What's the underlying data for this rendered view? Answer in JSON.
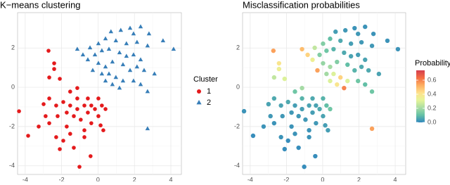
{
  "chart_data": [
    {
      "type": "scatter",
      "title": "K−means clustering",
      "legend_title": "Cluster",
      "legend": "right",
      "grid": true,
      "xlim": [
        -4.42,
        4.58
      ],
      "ylim": [
        -4.44,
        3.8
      ],
      "xticks": [
        -4,
        -2,
        0,
        2,
        4
      ],
      "yticks": [
        -4,
        -2,
        0,
        2
      ],
      "series": [
        {
          "name": "1",
          "color": "#e41a1c",
          "shape": "circle",
          "x": [
            -2.72,
            -2.41,
            -2.41,
            -2.68,
            -2.1,
            -4.34,
            -3.84,
            -3.26,
            -2.99,
            -2.68,
            -2.3,
            -1.91,
            -1.53,
            -1.14,
            -0.75,
            -1.72,
            -1.33,
            -0.95,
            -0.56,
            -0.17,
            0.21,
            0.41,
            0.02,
            -0.37,
            -0.75,
            -1.53,
            -1.91,
            -2.3,
            -1.33,
            -2.1,
            -1.02,
            -0.41,
            0.14,
            0.29,
            -0.75,
            -2.68,
            -2.88,
            -1.14,
            -0.56,
            -1.53,
            -2.22,
            -1.72,
            -1.14,
            -0.37,
            0.02
          ],
          "y": [
            1.86,
            1.22,
            0.93,
            0.5,
            0.43,
            -1.22,
            -2.47,
            -2.0,
            -0.86,
            -0.57,
            -0.93,
            -0.75,
            -0.22,
            -0.57,
            -0.93,
            -1.29,
            -1.47,
            -1.65,
            -1.29,
            -1.11,
            -0.93,
            -1.11,
            -1.47,
            -1.83,
            -2.19,
            -2.37,
            -2.72,
            -2.54,
            -3.08,
            -3.15,
            -4.05,
            -3.51,
            -1.94,
            -2.19,
            -2.54,
            -1.83,
            -1.47,
            -0.04,
            -0.57,
            -0.93,
            -1.47,
            -2.0,
            -1.11,
            -0.93,
            -0.57
          ]
        },
        {
          "name": "2",
          "color": "#377eb8",
          "shape": "triangle",
          "x": [
            0.71,
            1.25,
            1.76,
            2.34,
            1.95,
            2.8,
            3.57,
            2.72,
            2.14,
            1.56,
            0.98,
            0.41,
            0.02,
            -0.44,
            -0.83,
            -1.14,
            -0.56,
            -0.17,
            0.21,
            0.6,
            1.18,
            1.56,
            1.95,
            2.34,
            2.14,
            1.76,
            1.37,
            0.79,
            0.41,
            0.02,
            0.6,
            0.98,
            1.37,
            1.95,
            2.34,
            2.72,
            1.18,
            0.79,
            0.41,
            0.21,
            4.15,
            2.72,
            3.1,
            -0.29,
            2.53
          ],
          "y": [
            2.83,
            2.9,
            3.01,
            3.08,
            2.72,
            2.72,
            2.37,
            2.11,
            2.29,
            2.22,
            2.37,
            2.47,
            2.22,
            2.01,
            1.65,
            1.94,
            1.4,
            1.65,
            1.86,
            1.94,
            1.76,
            1.58,
            1.65,
            1.4,
            1.04,
            0.86,
            1.15,
            1.29,
            1.04,
            1.22,
            0.68,
            0.5,
            0.32,
            0.32,
            0.14,
            -0.22,
            -0.04,
            0.14,
            0.32,
            0.68,
            1.94,
            -2.11,
            0.68,
            0.86,
            0.86
          ]
        }
      ]
    },
    {
      "type": "scatter",
      "title": "Misclassification probabilities",
      "colorbar_title": "Probability",
      "grid": true,
      "xlim": [
        -4.42,
        4.58
      ],
      "ylim": [
        -4.44,
        3.8
      ],
      "xticks": [
        -4,
        -2,
        0,
        2,
        4
      ],
      "yticks": [
        -4,
        -2,
        0,
        2
      ],
      "clim": [
        0,
        0.74
      ],
      "cticks": [
        {
          "value": 0,
          "label": "0.0"
        },
        0.2,
        0.4,
        0.6
      ],
      "colors": [
        "#3288bd",
        "#66c2a5",
        "#abdda4",
        "#e6f598",
        "#fee08b",
        "#fdae61",
        "#f46d43",
        "#d53e4f"
      ],
      "x": [
        -2.72,
        -2.41,
        -2.41,
        -2.68,
        -2.1,
        -4.34,
        -3.84,
        -3.26,
        -2.99,
        -2.68,
        -2.3,
        -1.91,
        -1.53,
        -1.14,
        -0.75,
        -1.72,
        -1.33,
        -0.95,
        -0.56,
        -0.17,
        0.21,
        0.41,
        0.02,
        -0.37,
        -0.75,
        -1.53,
        -1.91,
        -2.3,
        -1.33,
        -2.1,
        -1.02,
        -0.41,
        0.14,
        0.29,
        -0.75,
        -2.68,
        -2.88,
        -1.14,
        -0.56,
        -1.53,
        -2.22,
        -1.72,
        -1.14,
        -0.37,
        0.02,
        0.71,
        1.25,
        1.76,
        2.34,
        1.95,
        2.8,
        3.57,
        2.72,
        2.14,
        1.56,
        0.98,
        0.41,
        0.02,
        -0.44,
        -0.83,
        -1.14,
        -0.56,
        -0.17,
        0.21,
        0.6,
        1.18,
        1.56,
        1.95,
        2.34,
        2.14,
        1.76,
        1.37,
        0.79,
        0.41,
        0.02,
        0.6,
        0.98,
        1.37,
        1.95,
        2.34,
        2.72,
        1.18,
        0.79,
        0.41,
        0.21,
        4.15,
        2.72,
        3.1,
        -0.29,
        2.53
      ],
      "y": [
        1.86,
        1.22,
        0.93,
        0.5,
        0.43,
        -1.22,
        -2.47,
        -2.0,
        -0.86,
        -0.57,
        -0.93,
        -0.75,
        -0.22,
        -0.57,
        -0.93,
        -1.29,
        -1.47,
        -1.65,
        -1.29,
        -1.11,
        -0.93,
        -1.11,
        -1.47,
        -1.83,
        -2.19,
        -2.37,
        -2.72,
        -2.54,
        -3.08,
        -3.15,
        -4.05,
        -3.51,
        -1.94,
        -2.19,
        -2.54,
        -1.83,
        -1.47,
        -0.04,
        -0.57,
        -0.93,
        -1.47,
        -2.0,
        -1.11,
        -0.93,
        -0.57,
        2.83,
        2.9,
        3.01,
        3.08,
        2.72,
        2.72,
        2.37,
        2.11,
        2.29,
        2.22,
        2.37,
        2.47,
        2.22,
        2.01,
        1.65,
        1.94,
        1.4,
        1.65,
        1.86,
        1.94,
        1.76,
        1.58,
        1.65,
        1.4,
        1.04,
        0.86,
        1.15,
        1.29,
        1.04,
        1.22,
        0.68,
        0.5,
        0.32,
        0.32,
        0.14,
        -0.22,
        -0.04,
        0.14,
        0.32,
        0.68,
        1.94,
        -2.11,
        0.68,
        0.86,
        0.86
      ],
      "values": [
        0.55,
        0.4,
        0.35,
        0.25,
        0.3,
        0.02,
        0.01,
        0.02,
        0.05,
        0.06,
        0.05,
        0.06,
        0.12,
        0.08,
        0.05,
        0.03,
        0.03,
        0.03,
        0.04,
        0.06,
        0.1,
        0.12,
        0.05,
        0.03,
        0.02,
        0.02,
        0.01,
        0.02,
        0.01,
        0.01,
        0.01,
        0.01,
        0.04,
        0.04,
        0.02,
        0.02,
        0.03,
        0.2,
        0.06,
        0.04,
        0.03,
        0.02,
        0.04,
        0.05,
        0.08,
        0.04,
        0.03,
        0.02,
        0.02,
        0.03,
        0.02,
        0.02,
        0.03,
        0.03,
        0.04,
        0.06,
        0.1,
        0.15,
        0.25,
        0.45,
        0.5,
        0.35,
        0.15,
        0.12,
        0.08,
        0.06,
        0.05,
        0.04,
        0.05,
        0.06,
        0.08,
        0.1,
        0.15,
        0.2,
        0.18,
        0.3,
        0.45,
        0.3,
        0.12,
        0.1,
        0.12,
        0.6,
        0.4,
        0.3,
        0.2,
        0.02,
        0.55,
        0.05,
        0.55,
        0.06
      ]
    }
  ]
}
